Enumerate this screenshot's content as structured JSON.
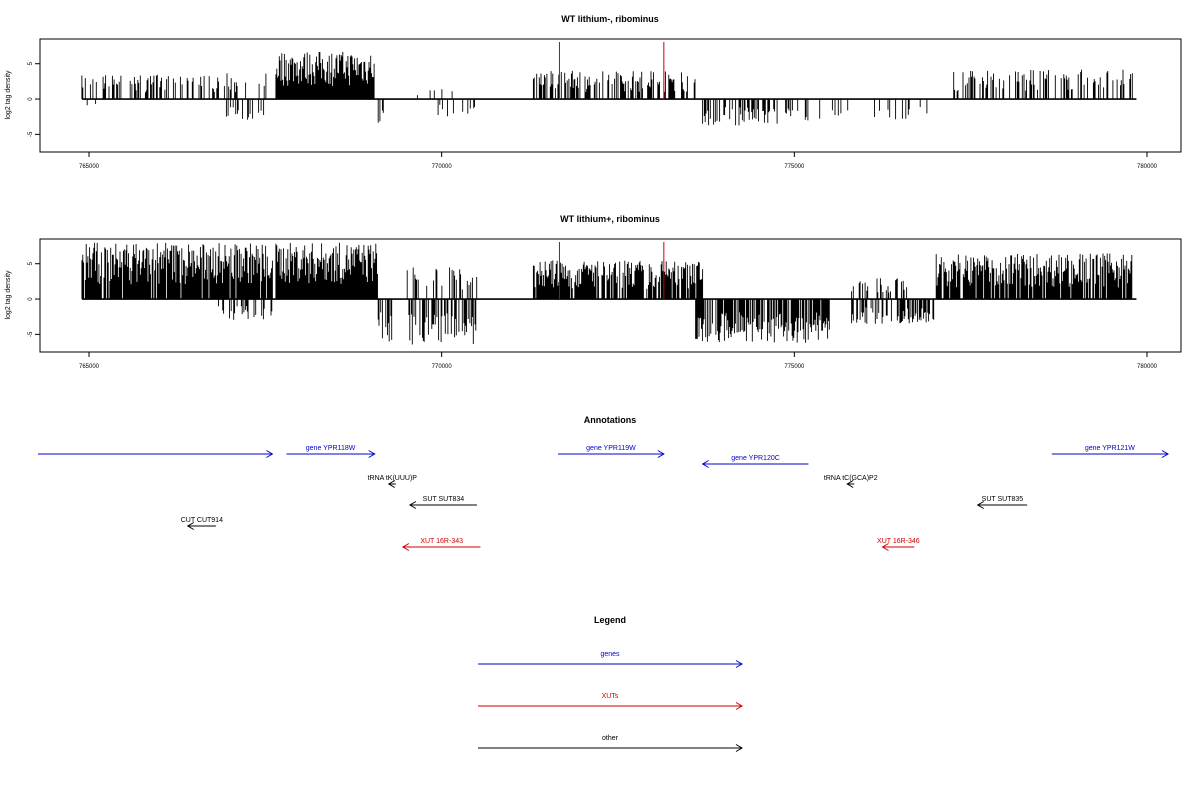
{
  "chart_data": [
    {
      "type": "bar",
      "title": "WT lithium-, ribominus",
      "xlabel": "",
      "ylabel": "log2 tag density",
      "xlim": [
        764300,
        780450
      ],
      "ylim": [
        -7.5,
        8.5
      ],
      "xticks": [
        "765000",
        "770000",
        "775000",
        "780000"
      ],
      "yticks": [
        "-5",
        "0",
        "5"
      ],
      "baseline": 0,
      "highlight_lines": [
        {
          "x": 771670,
          "color": "#cc0000"
        },
        {
          "x": 773150,
          "color": "#cc0000"
        }
      ],
      "positive_regions": [
        {
          "x": [
            764900,
            766200
          ],
          "max": 3.5,
          "density": 0.35
        },
        {
          "x": [
            766200,
            767600
          ],
          "max": 3.8,
          "density": 0.35
        },
        {
          "x": [
            767650,
            769050
          ],
          "max": 6.8,
          "density": 1.0
        },
        {
          "x": [
            769500,
            770300
          ],
          "max": 1.5,
          "density": 0.05
        },
        {
          "x": [
            771300,
            773600
          ],
          "max": 4.0,
          "density": 0.55
        },
        {
          "x": [
            777200,
            779800
          ],
          "max": 4.2,
          "density": 0.4
        }
      ],
      "negative_regions": [
        {
          "x": [
            764950,
            765100
          ],
          "min": -1.0,
          "density": 0.2
        },
        {
          "x": [
            766900,
            767500
          ],
          "min": -3.0,
          "density": 0.3
        },
        {
          "x": [
            769100,
            769200
          ],
          "min": -3.6,
          "density": 0.5
        },
        {
          "x": [
            769950,
            770500
          ],
          "min": -2.5,
          "density": 0.15
        },
        {
          "x": [
            773700,
            775000
          ],
          "min": -3.8,
          "density": 0.4
        },
        {
          "x": [
            775000,
            776000
          ],
          "min": -3.5,
          "density": 0.15
        },
        {
          "x": [
            776100,
            776950
          ],
          "min": -3.2,
          "density": 0.2
        }
      ]
    },
    {
      "type": "bar",
      "title": "WT lithium+, ribominus",
      "xlabel": "",
      "ylabel": "log2 tag density",
      "xlim": [
        764300,
        780450
      ],
      "ylim": [
        -7.5,
        8.5
      ],
      "xticks": [
        "765000",
        "770000",
        "775000",
        "780000"
      ],
      "yticks": [
        "-5",
        "0",
        "5"
      ],
      "baseline": 0,
      "highlight_lines": [
        {
          "x": 771670,
          "color": "#cc0000"
        },
        {
          "x": 773150,
          "color": "#cc0000"
        }
      ],
      "positive_regions": [
        {
          "x": [
            764900,
            767600
          ],
          "max": 8.0,
          "density": 0.9
        },
        {
          "x": [
            767650,
            769100
          ],
          "max": 8.0,
          "density": 1.0
        },
        {
          "x": [
            769500,
            770500
          ],
          "max": 4.5,
          "density": 0.35
        },
        {
          "x": [
            771300,
            773700
          ],
          "max": 5.5,
          "density": 0.8
        },
        {
          "x": [
            775800,
            776600
          ],
          "max": 3.0,
          "density": 0.35
        },
        {
          "x": [
            777000,
            779800
          ],
          "max": 6.5,
          "density": 0.85
        }
      ],
      "negative_regions": [
        {
          "x": [
            766800,
            767700
          ],
          "min": -3.0,
          "density": 0.4
        },
        {
          "x": [
            769100,
            769300
          ],
          "min": -6.0,
          "density": 0.6
        },
        {
          "x": [
            769500,
            770500
          ],
          "min": -6.5,
          "density": 0.55
        },
        {
          "x": [
            773600,
            775500
          ],
          "min": -6.2,
          "density": 0.7
        },
        {
          "x": [
            775800,
            777000
          ],
          "min": -3.5,
          "density": 0.45
        }
      ]
    }
  ],
  "annotations": {
    "title": "Annotations",
    "features": [
      {
        "label": "",
        "x1": 762000,
        "x2": 767600,
        "strand": "+",
        "type": "gene"
      },
      {
        "label": "gene YPR118W",
        "x1": 767800,
        "x2": 769050,
        "strand": "+",
        "type": "gene"
      },
      {
        "label": "gene YPR119W",
        "x1": 771650,
        "x2": 773150,
        "strand": "+",
        "type": "gene"
      },
      {
        "label": "gene YPR120C",
        "x1": 773700,
        "x2": 775200,
        "strand": "-",
        "type": "gene"
      },
      {
        "label": "gene YPR121W",
        "x1": 778650,
        "x2": 780500,
        "strand": "+",
        "type": "gene"
      },
      {
        "label": "tRNA tK(UUU)P",
        "x1": 769250,
        "x2": 769350,
        "strand": "-",
        "type": "other"
      },
      {
        "label": "tRNA tC(GCA)P2",
        "x1": 775750,
        "x2": 775850,
        "strand": "-",
        "type": "other"
      },
      {
        "label": "SUT SUT834",
        "x1": 769550,
        "x2": 770500,
        "strand": "-",
        "type": "other"
      },
      {
        "label": "SUT SUT835",
        "x1": 777600,
        "x2": 778300,
        "strand": "-",
        "type": "other"
      },
      {
        "label": "CUT CUT914",
        "x1": 766400,
        "x2": 766800,
        "strand": "-",
        "type": "other"
      },
      {
        "label": "XUT 16R-343",
        "x1": 769450,
        "x2": 770550,
        "strand": "-",
        "type": "xut"
      },
      {
        "label": "XUT 16R-346",
        "x1": 776250,
        "x2": 776700,
        "strand": "-",
        "type": "xut"
      }
    ]
  },
  "legend": {
    "title": "Legend",
    "items": [
      {
        "label": "genes",
        "color": "#0000cc"
      },
      {
        "label": "XUTs",
        "color": "#cc0000"
      },
      {
        "label": "other",
        "color": "#000000"
      }
    ]
  },
  "colors": {
    "gene": "#0000cc",
    "xut": "#cc0000",
    "other": "#000000",
    "signal": "#000000",
    "highlight": "#cc0000"
  }
}
